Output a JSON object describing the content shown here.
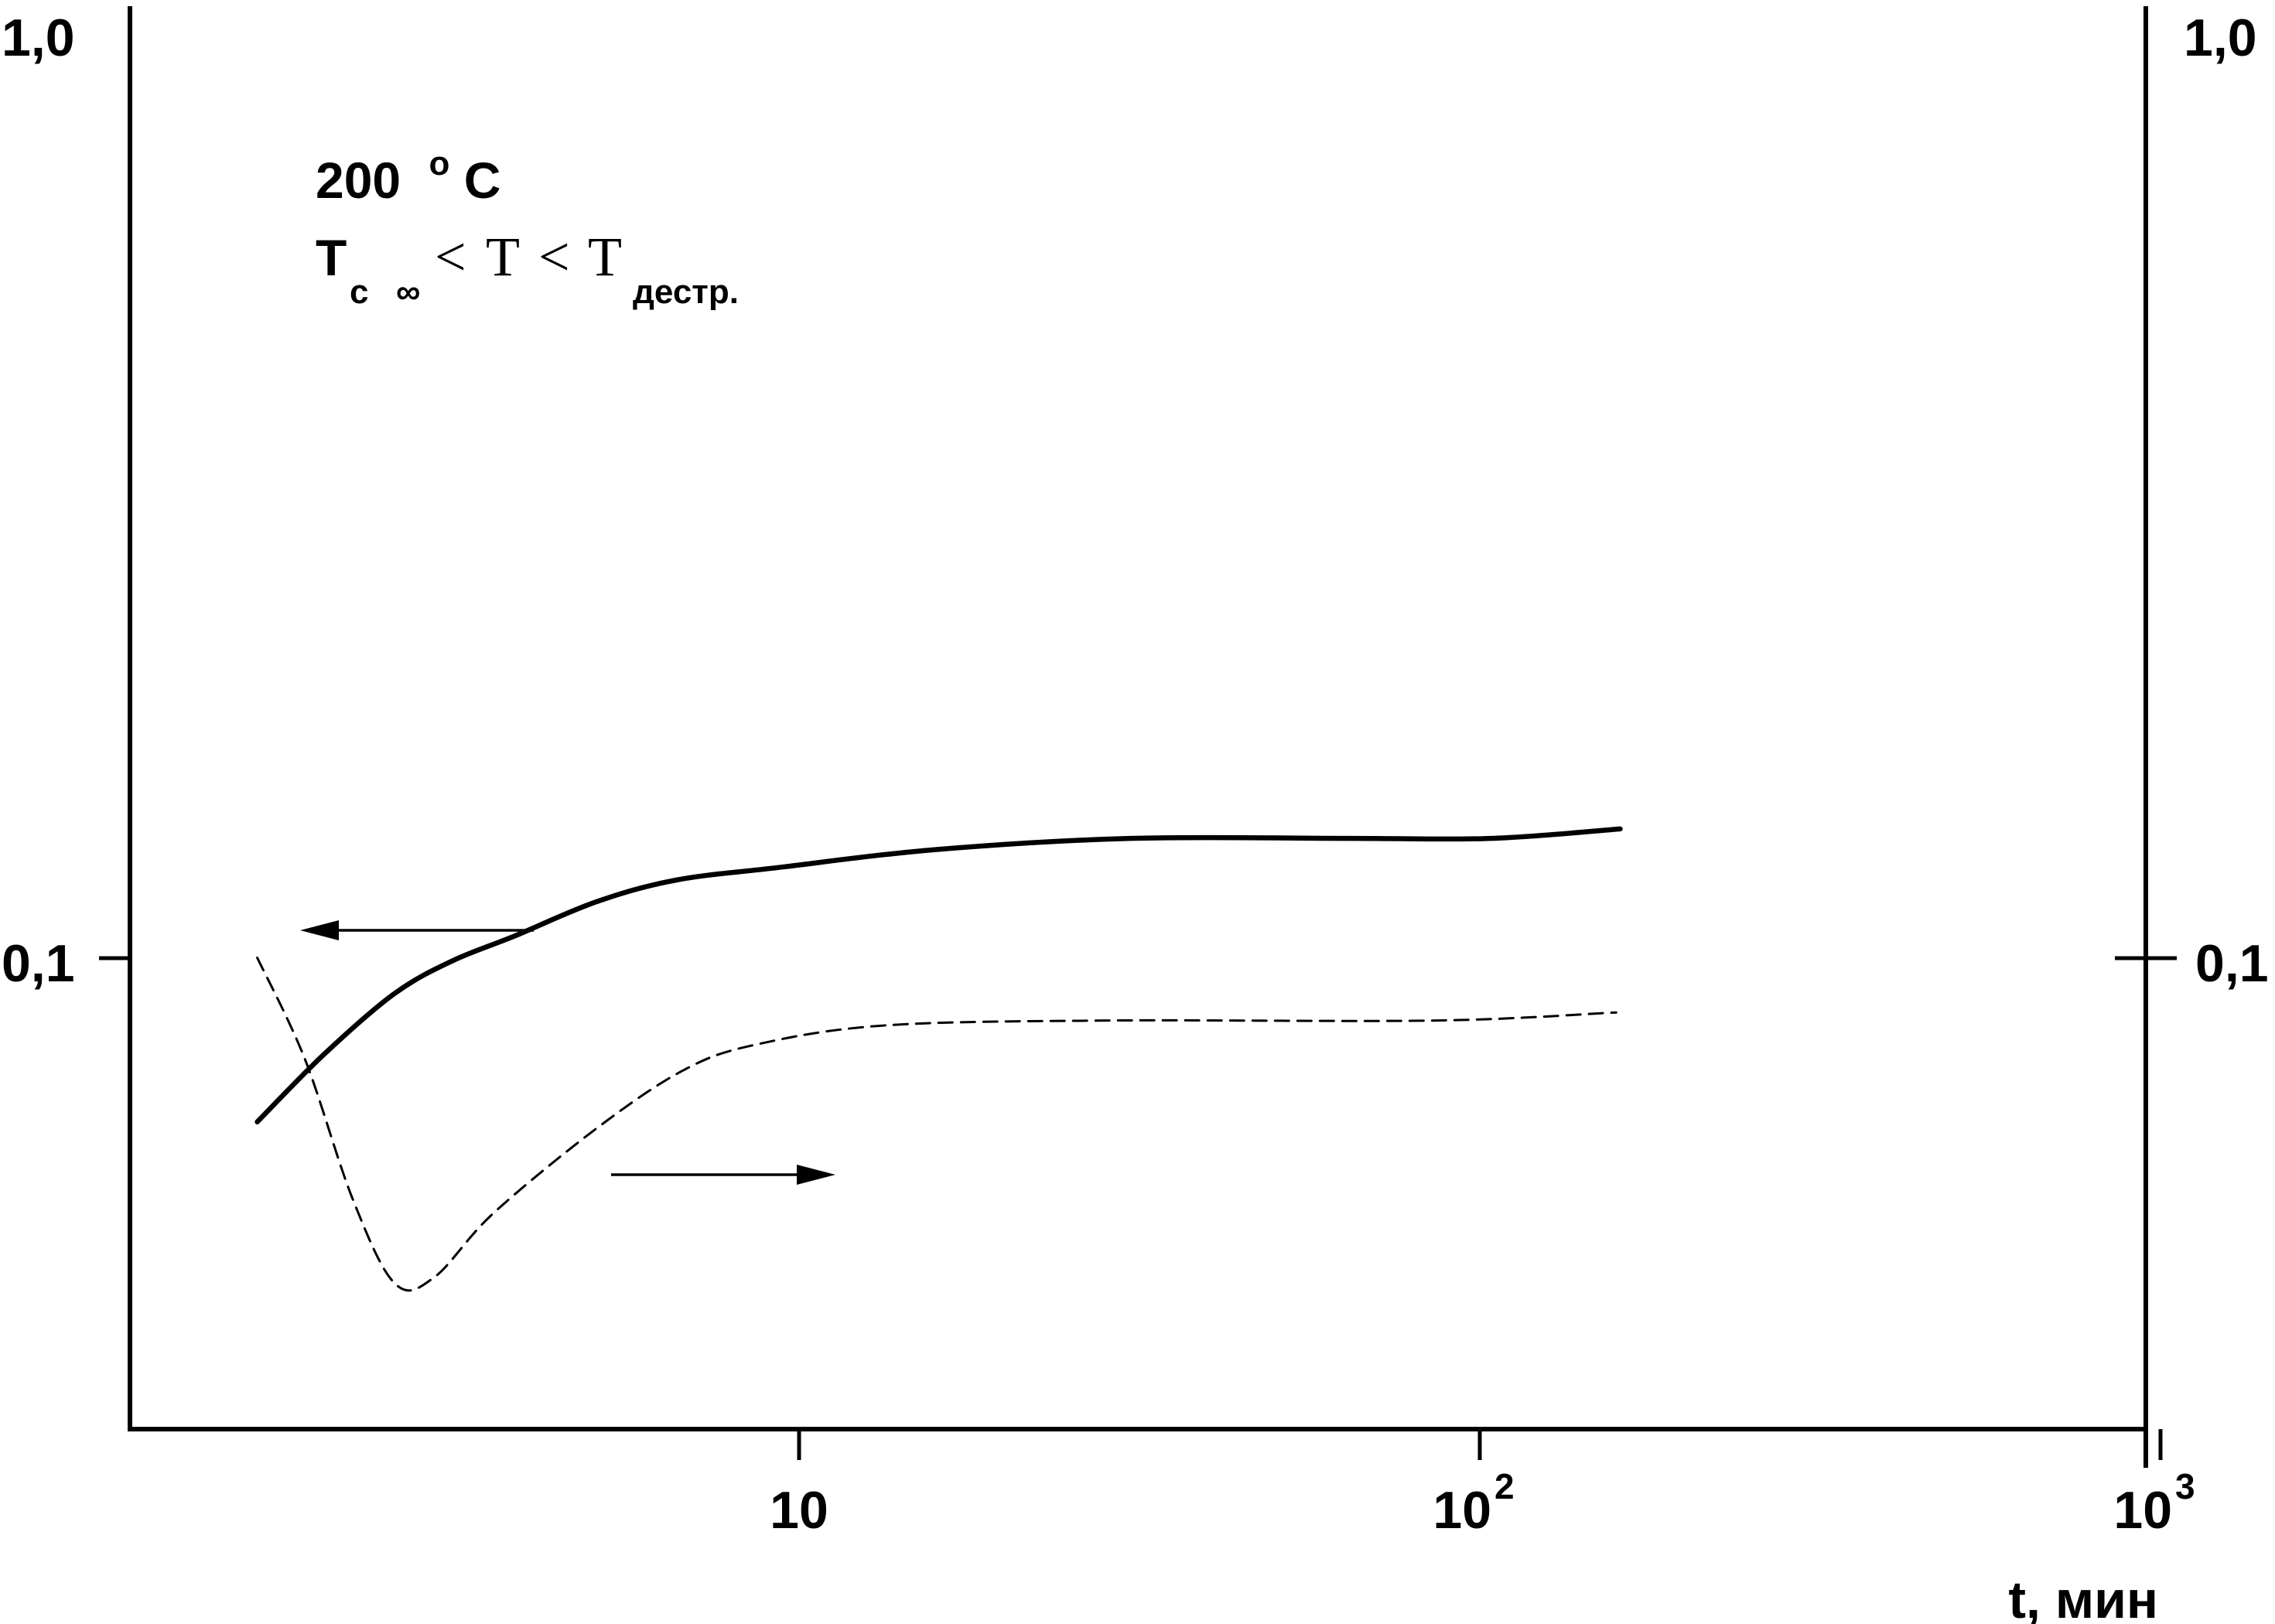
{
  "chart_data": {
    "type": "line",
    "title": "",
    "xlabel": "t, мин",
    "ylabel": "",
    "x_scale": "log",
    "y_scale": "log",
    "xlim": [
      1.6,
      1000
    ],
    "ylim_left": [
      0.036,
      1.0
    ],
    "ylim_right": [
      0.036,
      1.0
    ],
    "grid": false,
    "legend": "none",
    "x_ticks": [
      {
        "value": 10,
        "label": "10",
        "base": "",
        "exponent": ""
      },
      {
        "value": 100,
        "label": "",
        "base": "10",
        "exponent": "2"
      },
      {
        "value": 1000,
        "label": "",
        "base": "10",
        "exponent": "3"
      }
    ],
    "y_ticks_left": [
      {
        "value": 1.0,
        "label": "1,0"
      },
      {
        "value": 0.1,
        "label": "0,1"
      }
    ],
    "y_ticks_right": [
      {
        "value": 1.0,
        "label": "1,0"
      },
      {
        "value": 0.1,
        "label": "0,1"
      }
    ],
    "annotations": {
      "temperature_value": "200",
      "temperature_degree": "o",
      "temperature_unit": "C",
      "relation_T1": "T",
      "relation_T1_sub": "c",
      "relation_T1_inf": "∞",
      "relation_lt1": "<",
      "relation_T2": "T",
      "relation_lt2": "<",
      "relation_T3": "T",
      "relation_T3_sub": "дестр."
    },
    "series": [
      {
        "style": "solid",
        "axis": "left",
        "points": [
          [
            1.6,
            0.0673
          ],
          [
            2.0,
            0.0791
          ],
          [
            2.54,
            0.0917
          ],
          [
            3.09,
            0.0993
          ],
          [
            3.82,
            0.1055
          ],
          [
            5.02,
            0.1145
          ],
          [
            6.6,
            0.1208
          ],
          [
            9.32,
            0.1245
          ],
          [
            15.8,
            0.13
          ],
          [
            30.7,
            0.1336
          ],
          [
            64.9,
            0.1336
          ],
          [
            104.0,
            0.1336
          ],
          [
            160.8,
            0.1367
          ]
        ]
      },
      {
        "style": "dashed",
        "axis": "right",
        "points": [
          [
            1.6,
            0.1001
          ],
          [
            1.88,
            0.0783
          ],
          [
            2.21,
            0.0558
          ],
          [
            2.55,
            0.0455
          ],
          [
            2.91,
            0.0462
          ],
          [
            3.55,
            0.0539
          ],
          [
            5.02,
            0.0661
          ],
          [
            6.75,
            0.0762
          ],
          [
            8.62,
            0.0811
          ],
          [
            13.4,
            0.085
          ],
          [
            28.8,
            0.086
          ],
          [
            86.4,
            0.086
          ],
          [
            158.6,
            0.0877
          ]
        ]
      }
    ],
    "arrows": [
      {
        "direction": "left",
        "points_to_axis": "left"
      },
      {
        "direction": "right",
        "points_to_axis": "right"
      }
    ]
  }
}
